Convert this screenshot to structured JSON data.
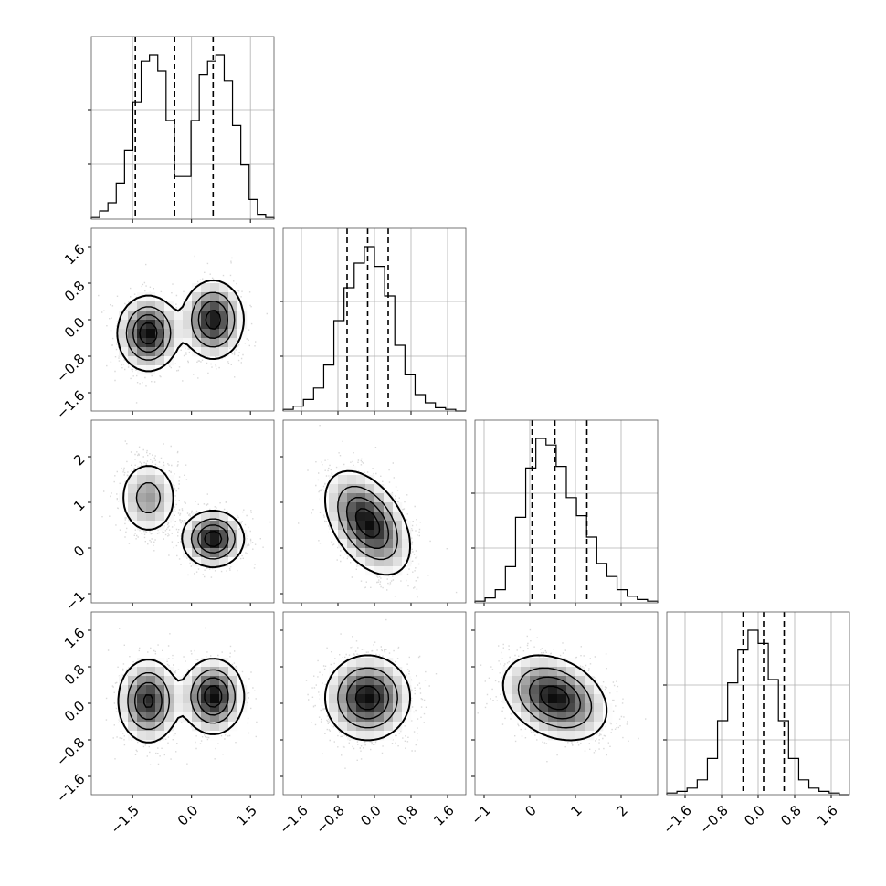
{
  "chart_data": {
    "type": "corner",
    "title": "",
    "n_params": 4,
    "parameters": [
      {
        "label": "",
        "range": [
          -2.55,
          2.1
        ],
        "quantiles": [
          -1.43,
          -0.43,
          0.55
        ],
        "ticks": [
          -1.5,
          0.0,
          1.5
        ],
        "tick_labels": [
          "−1.5",
          "0.0",
          "1.5"
        ]
      },
      {
        "label": "",
        "range": [
          -2.0,
          2.0
        ],
        "quantiles": [
          -0.6,
          -0.15,
          0.3
        ],
        "ticks": [
          -1.6,
          -0.8,
          0.0,
          0.8,
          1.6
        ],
        "tick_labels": [
          "−1.6",
          "−0.8",
          "0.0",
          "0.8",
          "1.6"
        ]
      },
      {
        "label": "",
        "range": [
          -1.2,
          2.8
        ],
        "quantiles": [
          0.05,
          0.55,
          1.25
        ],
        "ticks": [
          -1,
          0,
          1,
          2
        ],
        "tick_labels": [
          "−1",
          "0",
          "1",
          "2"
        ]
      },
      {
        "label": "",
        "range": [
          -2.0,
          2.0
        ],
        "quantiles": [
          -0.33,
          0.12,
          0.57
        ],
        "ticks": [
          -1.6,
          -0.8,
          0.0,
          0.8,
          1.6
        ],
        "tick_labels": [
          "−1.6",
          "−0.8",
          "0.0",
          "0.8",
          "1.6"
        ]
      }
    ],
    "histograms": [
      {
        "param": 0,
        "bin_range": [
          -2.55,
          2.1
        ],
        "counts": [
          1,
          5,
          10,
          22,
          42,
          71,
          96,
          100,
          90,
          60,
          26,
          26,
          60,
          88,
          96,
          100,
          84,
          57,
          33,
          12,
          3,
          1
        ]
      },
      {
        "param": 1,
        "bin_range": [
          -2.0,
          2.0
        ],
        "counts": [
          1,
          3,
          7,
          14,
          28,
          55,
          75,
          90,
          100,
          88,
          70,
          40,
          22,
          10,
          5,
          2,
          1,
          0
        ]
      },
      {
        "param": 2,
        "bin_range": [
          -1.2,
          2.8
        ],
        "counts": [
          1,
          3,
          8,
          22,
          52,
          82,
          100,
          96,
          83,
          64,
          53,
          40,
          24,
          16,
          8,
          4,
          2,
          1
        ]
      },
      {
        "param": 3,
        "bin_range": [
          -2.0,
          2.0
        ],
        "counts": [
          1,
          2,
          4,
          9,
          22,
          45,
          68,
          88,
          100,
          92,
          70,
          45,
          22,
          9,
          4,
          2,
          1,
          0
        ]
      }
    ],
    "pairs": [
      {
        "x": 0,
        "y": 1,
        "components": [
          {
            "weight": 0.5,
            "mean": [
              -1.1,
              -0.3
            ],
            "sd": [
              0.38,
              0.4
            ],
            "corr": 0.0
          },
          {
            "weight": 0.5,
            "mean": [
              0.55,
              0.0
            ],
            "sd": [
              0.38,
              0.42
            ],
            "corr": 0.0
          }
        ]
      },
      {
        "x": 0,
        "y": 2,
        "components": [
          {
            "weight": 0.4,
            "mean": [
              -1.1,
              1.1
            ],
            "sd": [
              0.38,
              0.42
            ],
            "corr": 0.0
          },
          {
            "weight": 0.6,
            "mean": [
              0.55,
              0.2
            ],
            "sd": [
              0.38,
              0.3
            ],
            "corr": 0.0
          }
        ]
      },
      {
        "x": 1,
        "y": 2,
        "components": [
          {
            "weight": 1.0,
            "mean": [
              -0.15,
              0.55
            ],
            "sd": [
              0.45,
              0.55
            ],
            "corr": -0.45
          }
        ]
      },
      {
        "x": 0,
        "y": 3,
        "components": [
          {
            "weight": 0.5,
            "mean": [
              -1.1,
              0.05
            ],
            "sd": [
              0.38,
              0.45
            ],
            "corr": 0.0
          },
          {
            "weight": 0.5,
            "mean": [
              0.55,
              0.15
            ],
            "sd": [
              0.38,
              0.4
            ],
            "corr": 0.0
          }
        ]
      },
      {
        "x": 1,
        "y": 3,
        "components": [
          {
            "weight": 1.0,
            "mean": [
              -0.15,
              0.12
            ],
            "sd": [
              0.45,
              0.45
            ],
            "corr": 0.0
          }
        ]
      },
      {
        "x": 2,
        "y": 3,
        "components": [
          {
            "weight": 1.0,
            "mean": [
              0.55,
              0.12
            ],
            "sd": [
              0.55,
              0.45
            ],
            "corr": -0.3
          }
        ]
      }
    ],
    "grid": true,
    "contour_levels": [
      0.12,
      0.35,
      0.6,
      0.85
    ],
    "colors": {
      "line": "#000000",
      "grid": "#b0b0b0",
      "frame": "#555555",
      "points": "#666666"
    }
  }
}
